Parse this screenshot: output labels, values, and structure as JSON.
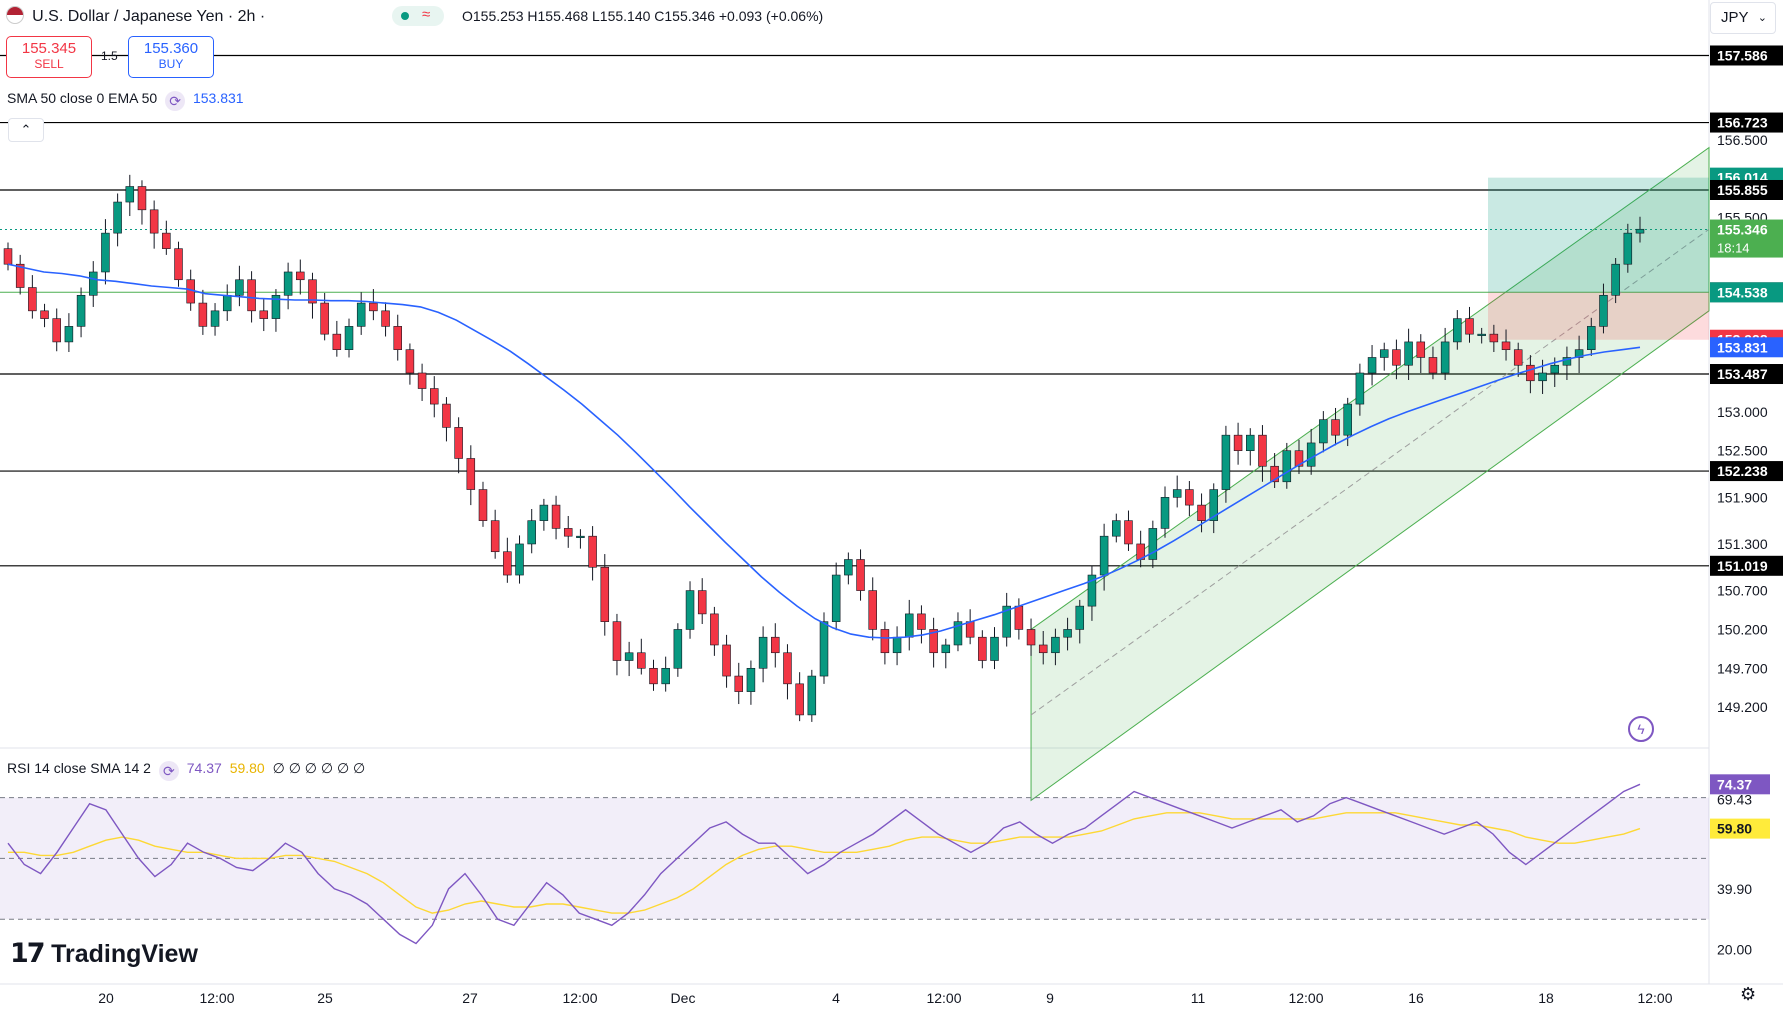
{
  "header": {
    "symbol_title": "U.S. Dollar / Japanese Yen · 2h ·",
    "ohlc": "O155.253 H155.468 L155.140 C155.346 +0.093 (+0.06%)",
    "sell_price": "155.345",
    "sell_label": "SELL",
    "spread": "1.5",
    "buy_price": "155.360",
    "buy_label": "BUY",
    "currency": "JPY",
    "currency_chevron": "chevron-down-icon"
  },
  "indicators": {
    "ma_label": "SMA 50 close 0 EMA 50",
    "ma_value": "153.831",
    "rsi_label": "RSI 14 close SMA 14 2",
    "rsi_value": "74.37",
    "rsi_sma_value": "59.80",
    "rsi_extra": "∅ ∅ ∅ ∅ ∅ ∅"
  },
  "branding": {
    "logo_text": "TradingView"
  },
  "colors": {
    "up": "#089981",
    "down": "#f23645",
    "ma": "#2962ff",
    "channel": "#4caf50",
    "rsi": "#7e57c2",
    "rsi_sma": "#fdd835",
    "level": "#000000"
  },
  "chart_data": [
    {
      "type": "candlestick",
      "pair": "USD/JPY",
      "interval": "2h",
      "y_axis_labels": [
        "157.586",
        "156.723",
        "156.500",
        "156.014",
        "155.855",
        "155.500",
        "155.346",
        "154.539",
        "154.538",
        "153.928",
        "153.831",
        "153.487",
        "153.000",
        "152.500",
        "152.238",
        "151.900",
        "151.300",
        "151.019",
        "150.700",
        "150.200",
        "149.700",
        "149.200"
      ],
      "x_axis_labels": [
        "20",
        "12:00",
        "25",
        "27",
        "12:00",
        "Dec",
        "4",
        "12:00",
        "9",
        "11",
        "12:00",
        "16",
        "18",
        "12:00"
      ],
      "ylim": [
        148.7,
        158.3
      ],
      "last_price": 155.346,
      "countdown": "18:14",
      "horizontal_levels": [
        157.586,
        156.723,
        155.855,
        153.487,
        152.238,
        151.019
      ],
      "current_level": 154.539,
      "take_profit": 156.014,
      "entry": 154.538,
      "stop_loss": 153.928,
      "ema50_value": 153.831,
      "closes": [
        154.9,
        154.6,
        154.3,
        154.2,
        153.9,
        154.1,
        154.5,
        154.8,
        155.3,
        155.7,
        155.9,
        155.6,
        155.3,
        155.1,
        154.7,
        154.4,
        154.1,
        154.3,
        154.5,
        154.7,
        154.3,
        154.2,
        154.5,
        154.8,
        154.7,
        154.4,
        154.0,
        153.8,
        154.1,
        154.4,
        154.3,
        154.1,
        153.8,
        153.5,
        153.3,
        153.1,
        152.8,
        152.4,
        152.0,
        151.6,
        151.2,
        150.9,
        151.3,
        151.6,
        151.8,
        151.5,
        151.4,
        151.4,
        151.0,
        150.3,
        149.8,
        149.9,
        149.7,
        149.5,
        149.7,
        150.2,
        150.7,
        150.4,
        150.0,
        149.6,
        149.4,
        149.7,
        150.1,
        149.9,
        149.5,
        149.1,
        149.6,
        150.3,
        150.9,
        151.1,
        150.7,
        150.2,
        149.9,
        150.1,
        150.4,
        150.2,
        149.9,
        150.0,
        150.3,
        150.1,
        149.8,
        150.1,
        150.5,
        150.2,
        150.0,
        149.9,
        150.1,
        150.2,
        150.5,
        150.9,
        151.4,
        151.6,
        151.3,
        151.1,
        151.5,
        151.9,
        152.0,
        151.8,
        151.6,
        152.0,
        152.7,
        152.5,
        152.7,
        152.3,
        152.1,
        152.5,
        152.3,
        152.6,
        152.9,
        152.7,
        153.1,
        153.5,
        153.7,
        153.8,
        153.6,
        153.9,
        153.7,
        153.5,
        153.9,
        154.2,
        154.0,
        154.0,
        153.9,
        153.8,
        153.6,
        153.4,
        153.5,
        153.6,
        153.7,
        153.8,
        154.1,
        154.5,
        154.9,
        155.3,
        155.35
      ],
      "ema50": [
        154.9,
        154.85,
        154.8,
        154.78,
        154.75,
        154.7,
        154.68,
        154.65,
        154.62,
        154.6,
        154.58,
        154.52,
        154.5,
        154.48,
        154.46,
        154.45,
        154.44,
        154.44,
        154.43,
        154.43,
        154.42,
        154.4,
        154.38,
        154.35,
        154.28,
        154.18,
        154.05,
        153.92,
        153.78,
        153.62,
        153.45,
        153.28,
        153.1,
        152.9,
        152.7,
        152.48,
        152.25,
        152.02,
        151.78,
        151.55,
        151.32,
        151.1,
        150.88,
        150.68,
        150.5,
        150.34,
        150.22,
        150.14,
        150.1,
        150.09,
        150.1,
        150.13,
        150.18,
        150.25,
        150.32,
        150.39,
        150.47,
        150.55,
        150.63,
        150.71,
        150.79,
        150.88,
        150.98,
        151.09,
        151.21,
        151.34,
        151.48,
        151.62,
        151.76,
        151.9,
        152.04,
        152.18,
        152.32,
        152.45,
        152.58,
        152.7,
        152.81,
        152.91,
        153.0,
        153.08,
        153.16,
        153.24,
        153.32,
        153.4,
        153.48,
        153.55,
        153.62,
        153.68,
        153.73,
        153.77,
        153.8,
        153.831
      ]
    },
    {
      "type": "line",
      "indicator": "RSI 14",
      "ylim": [
        10,
        85
      ],
      "guide_levels": [
        70,
        50,
        30
      ],
      "y_axis_labels": [
        "74.37",
        "69.43",
        "59.80",
        "39.90",
        "20.00"
      ],
      "rsi_last": 74.37,
      "rsi_sma_last": 59.8,
      "rsi": [
        55,
        48,
        45,
        52,
        60,
        68,
        66,
        58,
        50,
        44,
        48,
        55,
        52,
        50,
        47,
        46,
        50,
        55,
        52,
        45,
        40,
        38,
        35,
        30,
        25,
        22,
        28,
        40,
        45,
        38,
        30,
        28,
        35,
        42,
        38,
        32,
        30,
        28,
        32,
        38,
        45,
        50,
        55,
        60,
        62,
        58,
        55,
        55,
        50,
        45,
        48,
        52,
        55,
        58,
        62,
        66,
        62,
        58,
        55,
        52,
        55,
        60,
        62,
        58,
        55,
        58,
        60,
        64,
        68,
        72,
        70,
        68,
        66,
        64,
        62,
        60,
        62,
        64,
        66,
        62,
        64,
        68,
        70,
        68,
        66,
        64,
        62,
        60,
        58,
        60,
        62,
        58,
        52,
        48,
        52,
        56,
        60,
        64,
        68,
        72,
        74.37
      ],
      "rsi_sma": [
        52,
        52,
        51,
        51,
        52,
        54,
        56,
        57,
        56,
        54,
        53,
        52,
        52,
        51,
        50,
        50,
        50,
        51,
        51,
        50,
        49,
        47,
        45,
        42,
        38,
        34,
        32,
        33,
        35,
        36,
        35,
        34,
        34,
        35,
        35,
        34,
        33,
        32,
        32,
        33,
        35,
        37,
        40,
        44,
        48,
        51,
        53,
        54,
        54,
        53,
        52,
        52,
        52,
        53,
        54,
        56,
        57,
        57,
        56,
        55,
        55,
        56,
        57,
        57,
        57,
        57,
        58,
        59,
        61,
        63,
        64,
        65,
        65,
        65,
        64,
        63,
        63,
        63,
        63,
        63,
        63,
        64,
        65,
        65,
        65,
        65,
        64,
        63,
        62,
        61,
        61,
        60,
        59,
        57,
        56,
        55,
        55,
        56,
        57,
        58,
        59.8
      ]
    }
  ]
}
